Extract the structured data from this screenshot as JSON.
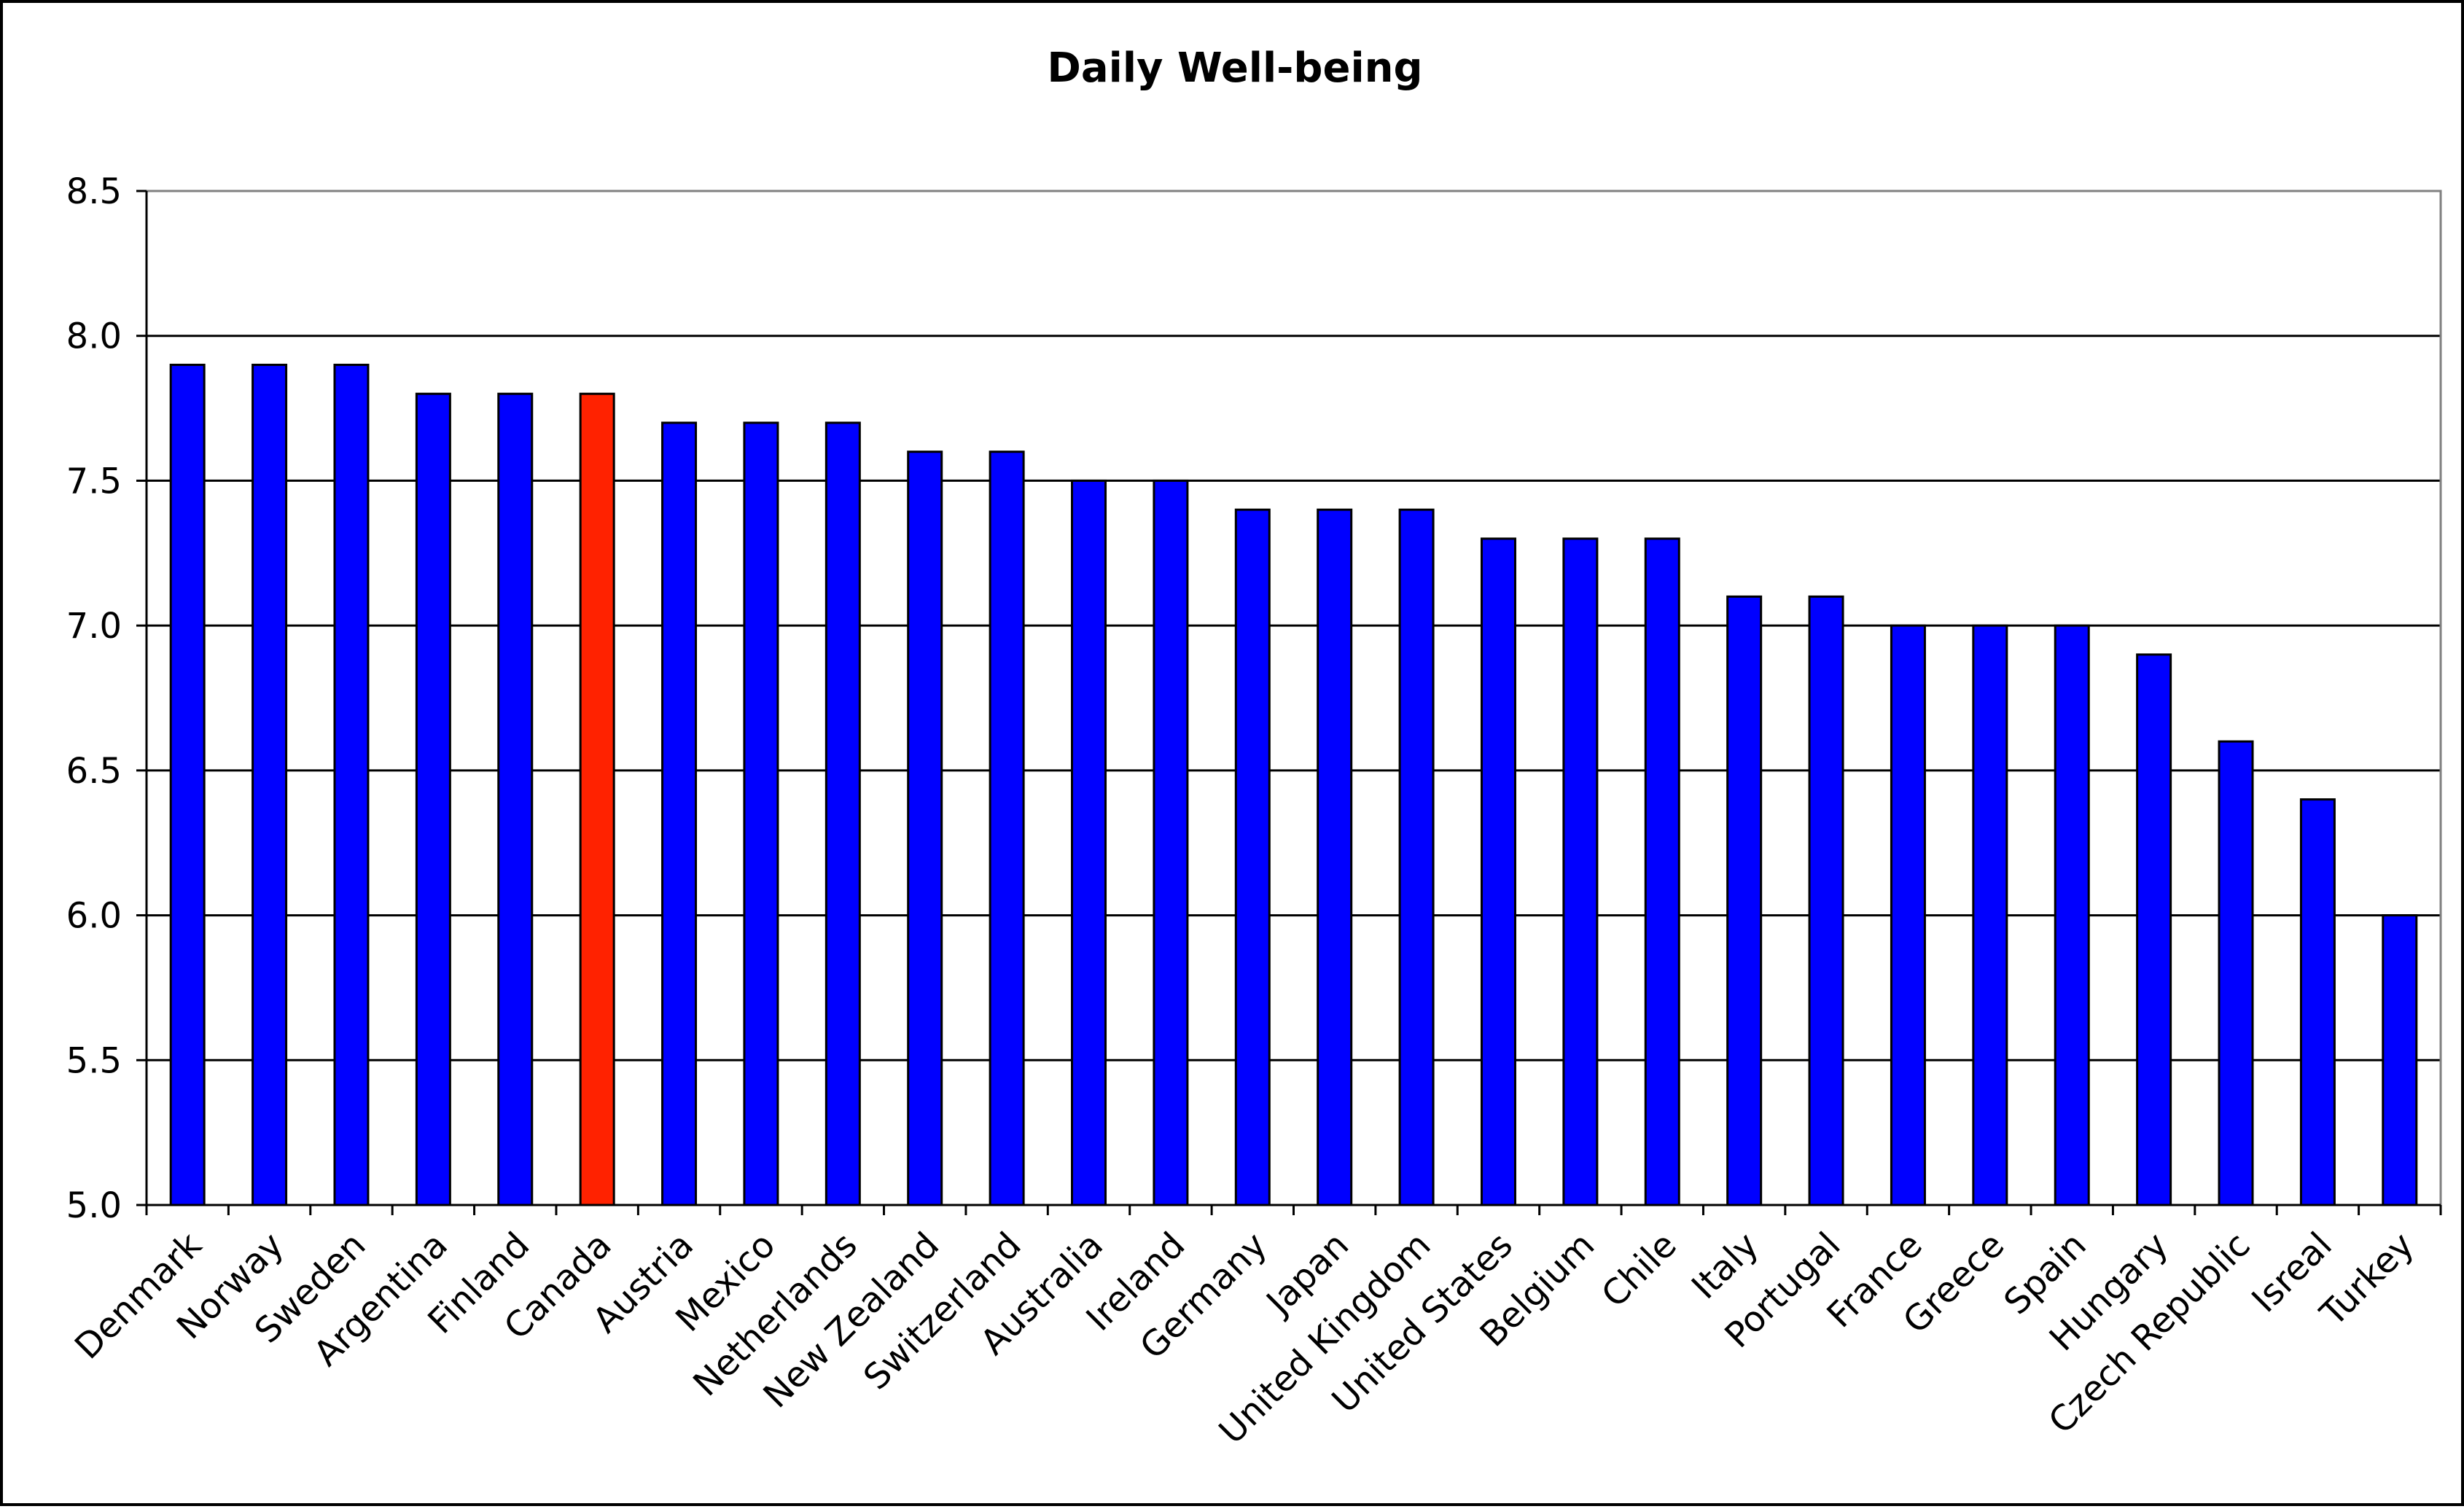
{
  "chart_data": {
    "type": "bar",
    "title": "Daily Well-being",
    "xlabel": "",
    "ylabel": "",
    "ylim": [
      5.0,
      8.5
    ],
    "yticks": [
      "5.0",
      "5.5",
      "6.0",
      "6.5",
      "7.0",
      "7.5",
      "8.0",
      "8.5"
    ],
    "grid": true,
    "legend": "none",
    "categories": [
      "Denmark",
      "Norway",
      "Sweden",
      "Argentina",
      "Finland",
      "Canada",
      "Austria",
      "Mexico",
      "Netherlands",
      "New Zealand",
      "Switzerland",
      "Australia",
      "Ireland",
      "Germany",
      "Japan",
      "United Kingdom",
      "United States",
      "Belgium",
      "Chile",
      "Italy",
      "Portugal",
      "France",
      "Greece",
      "Spain",
      "Hungary",
      "Czech Republic",
      "Isreal",
      "Turkey"
    ],
    "values": [
      7.9,
      7.9,
      7.9,
      7.8,
      7.8,
      7.8,
      7.7,
      7.7,
      7.7,
      7.6,
      7.6,
      7.5,
      7.5,
      7.4,
      7.4,
      7.4,
      7.3,
      7.3,
      7.3,
      7.1,
      7.1,
      7.0,
      7.0,
      7.0,
      6.9,
      6.6,
      6.4,
      6.0
    ],
    "colors": {
      "bar": "#0000ff",
      "highlight": "#ff2200",
      "highlight_category": "Canada",
      "grid": "#000000"
    }
  }
}
